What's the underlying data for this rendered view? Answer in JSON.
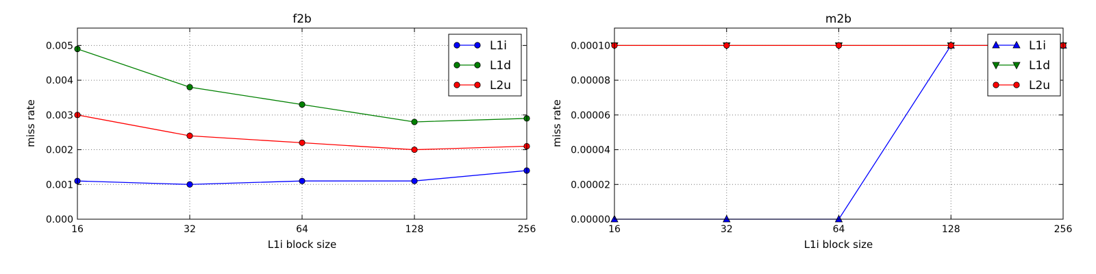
{
  "chart_data": [
    {
      "type": "line",
      "title": "f2b",
      "xlabel": "L1i block size",
      "ylabel": "miss rate",
      "x_scale": "log2",
      "x": [
        16,
        32,
        64,
        128,
        256
      ],
      "xticks": [
        "16",
        "32",
        "64",
        "128",
        "256"
      ],
      "xlim": [
        16,
        256
      ],
      "ylim": [
        0,
        0.0055
      ],
      "yticks": [
        "0.000",
        "0.001",
        "0.002",
        "0.003",
        "0.004",
        "0.005"
      ],
      "ytick_values": [
        0,
        0.001,
        0.002,
        0.003,
        0.004,
        0.005
      ],
      "grid": true,
      "legend_position": "top-right",
      "series": [
        {
          "name": "L1i",
          "color": "#0000ff",
          "marker": "circle",
          "values": [
            0.0011,
            0.001,
            0.0011,
            0.0011,
            0.0014
          ]
        },
        {
          "name": "L1d",
          "color": "#008000",
          "marker": "circle",
          "values": [
            0.0049,
            0.0038,
            0.0033,
            0.0028,
            0.0029
          ]
        },
        {
          "name": "L2u",
          "color": "#ff0000",
          "marker": "circle",
          "values": [
            0.003,
            0.0024,
            0.0022,
            0.002,
            0.0021
          ]
        }
      ]
    },
    {
      "type": "line",
      "title": "m2b",
      "xlabel": "L1i block size",
      "ylabel": "miss rate",
      "x_scale": "log2",
      "x": [
        16,
        32,
        64,
        128,
        256
      ],
      "xticks": [
        "16",
        "32",
        "64",
        "128",
        "256"
      ],
      "xlim": [
        16,
        256
      ],
      "ylim": [
        0,
        0.00011
      ],
      "yticks": [
        "0.00000",
        "0.00002",
        "0.00004",
        "0.00006",
        "0.00008",
        "0.00010"
      ],
      "ytick_values": [
        0,
        2e-05,
        4e-05,
        6e-05,
        8e-05,
        0.0001
      ],
      "grid": true,
      "legend_position": "top-right",
      "series": [
        {
          "name": "L1i",
          "color": "#0000ff",
          "marker": "triangle-up",
          "values": [
            0,
            0,
            0,
            0.0001,
            0.0001
          ]
        },
        {
          "name": "L1d",
          "color": "#008000",
          "marker": "triangle-down",
          "values": [
            0.0001,
            0.0001,
            0.0001,
            0.0001,
            0.0001
          ]
        },
        {
          "name": "L2u",
          "color": "#ff0000",
          "marker": "circle",
          "values": [
            0.0001,
            0.0001,
            0.0001,
            0.0001,
            0.0001
          ]
        }
      ]
    }
  ]
}
